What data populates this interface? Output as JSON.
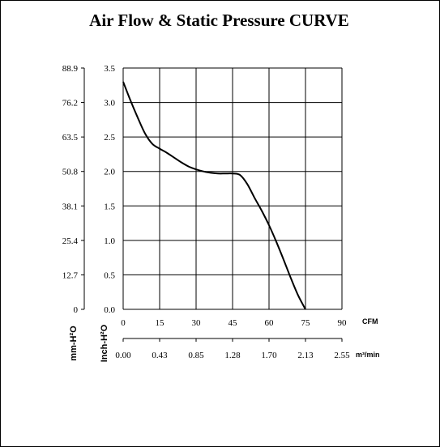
{
  "chart_data": {
    "type": "line",
    "title": "Air Flow & Static Pressure CURVE",
    "x_primary": {
      "ticks": [
        "0",
        "15",
        "30",
        "45",
        "60",
        "75",
        "90"
      ],
      "values": [
        0,
        15,
        30,
        45,
        60,
        75,
        90
      ],
      "unit": "CFM",
      "range": [
        0,
        90
      ]
    },
    "x_secondary": {
      "ticks": [
        "0.00",
        "0.43",
        "0.85",
        "1.28",
        "1.70",
        "2.13",
        "2.55"
      ],
      "unit": "m³/min"
    },
    "y_primary": {
      "ticks": [
        "0.0",
        "0.5",
        "1.0",
        "1.5",
        "2.0",
        "2.5",
        "3.0",
        "3.5"
      ],
      "values": [
        0,
        0.5,
        1.0,
        1.5,
        2.0,
        2.5,
        3.0,
        3.5
      ],
      "label": "Inch-H²O",
      "range": [
        0,
        3.5
      ]
    },
    "y_secondary": {
      "ticks": [
        "0",
        "12.7",
        "25.4",
        "38.1",
        "50.8",
        "63.5",
        "76.2",
        "88.9"
      ],
      "label": "mm-H²O"
    },
    "grid": true,
    "series": [
      {
        "x": [
          0,
          3,
          6,
          9,
          12,
          15,
          18,
          21,
          24,
          27,
          30,
          33,
          36,
          39,
          42,
          45,
          48,
          51,
          54,
          57,
          60,
          63,
          66,
          69,
          72,
          75
        ],
        "y": [
          3.3,
          3.03,
          2.78,
          2.55,
          2.4,
          2.33,
          2.27,
          2.2,
          2.13,
          2.07,
          2.03,
          2.0,
          1.98,
          1.97,
          1.97,
          1.97,
          1.95,
          1.82,
          1.62,
          1.43,
          1.22,
          0.98,
          0.72,
          0.45,
          0.2,
          0.0
        ],
        "color": "#000000"
      }
    ]
  }
}
